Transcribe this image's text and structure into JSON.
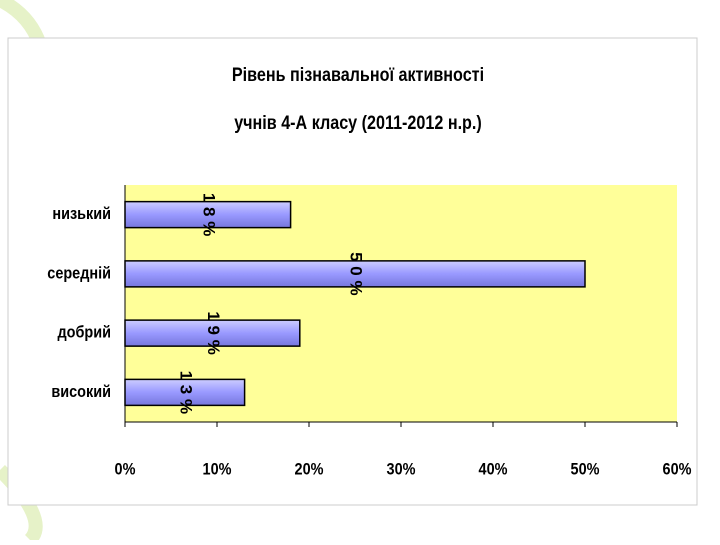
{
  "chart_data": {
    "type": "bar",
    "orientation": "horizontal",
    "title": [
      "Рівень пізнавальної активності",
      "учнів 4-А класу (2011-2012 н.р.)"
    ],
    "categories": [
      "низький",
      "середній",
      "добрий",
      "високий"
    ],
    "values": [
      18,
      50,
      19,
      13
    ],
    "value_labels": [
      "1 8 %",
      "5 0 %",
      "1 9 %",
      "1 3 %"
    ],
    "color": "#9999ff",
    "plot_background": "#ffff99",
    "xlim": [
      0,
      60
    ],
    "xticks": [
      {
        "value": 0,
        "label": "0%"
      },
      {
        "value": 10,
        "label": "10%"
      },
      {
        "value": 20,
        "label": "20%"
      },
      {
        "value": 30,
        "label": "30%"
      },
      {
        "value": 40,
        "label": "40%"
      },
      {
        "value": 50,
        "label": "50%"
      },
      {
        "value": 60,
        "label": "60%"
      }
    ],
    "grid": false
  }
}
